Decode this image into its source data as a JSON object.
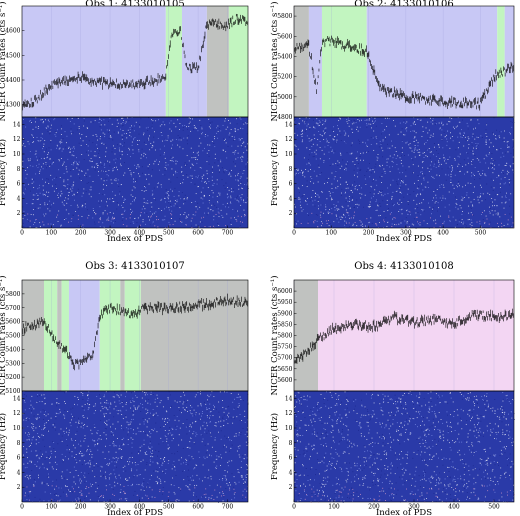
{
  "chart_data": [
    {
      "type": "line",
      "title": "Obs 1: 4133010105",
      "ylabel": "NICER Count rates (cts s⁻¹)",
      "xlabel": "Index of PDS",
      "ylabel_bottom": "Frequency (Hz)",
      "xlim": [
        0,
        770
      ],
      "xticks": [
        "0",
        "100",
        "200",
        "300",
        "400",
        "500",
        "600",
        "700"
      ],
      "ylim": [
        4250,
        4700
      ],
      "yticks": [
        "4300",
        "4400",
        "4500",
        "4600"
      ],
      "freq_lim": [
        0,
        15
      ],
      "freq_ticks": [
        "2",
        "4",
        "6",
        "8",
        "10",
        "12",
        "14"
      ],
      "bands": [
        {
          "from": 0,
          "to": 490,
          "class": "blue"
        },
        {
          "from": 490,
          "to": 545,
          "class": "green"
        },
        {
          "from": 545,
          "to": 630,
          "class": "blue"
        },
        {
          "from": 630,
          "to": 705,
          "class": "grey"
        },
        {
          "from": 705,
          "to": 770,
          "class": "green"
        }
      ],
      "series": [
        {
          "x": [
            0,
            50,
            100,
            150,
            200,
            250,
            300,
            350,
            400,
            450,
            490,
            510,
            540,
            560,
            600,
            630,
            660,
            700,
            730,
            770
          ],
          "y": [
            4300,
            4320,
            4380,
            4400,
            4410,
            4395,
            4385,
            4380,
            4385,
            4395,
            4420,
            4590,
            4600,
            4450,
            4450,
            4630,
            4630,
            4620,
            4650,
            4640
          ]
        }
      ]
    },
    {
      "type": "line",
      "title": "Obs 2: 4133010106",
      "ylabel": "NICER Count rates (cts s⁻¹)",
      "xlabel": "Index of PDS",
      "ylabel_bottom": "Frequency (Hz)",
      "xlim": [
        0,
        590
      ],
      "xticks": [
        "0",
        "100",
        "200",
        "300",
        "400",
        "500"
      ],
      "ylim": [
        4800,
        5900
      ],
      "yticks": [
        "4800",
        "5000",
        "5200",
        "5400",
        "5600",
        "5800"
      ],
      "freq_lim": [
        0,
        15
      ],
      "freq_ticks": [
        "2",
        "4",
        "6",
        "8",
        "10",
        "12",
        "14"
      ],
      "bands": [
        {
          "from": 0,
          "to": 40,
          "class": "grey"
        },
        {
          "from": 40,
          "to": 75,
          "class": "blue"
        },
        {
          "from": 75,
          "to": 195,
          "class": "green"
        },
        {
          "from": 195,
          "to": 545,
          "class": "blue"
        },
        {
          "from": 545,
          "to": 565,
          "class": "green"
        },
        {
          "from": 565,
          "to": 590,
          "class": "blue"
        }
      ],
      "series": [
        {
          "x": [
            0,
            40,
            60,
            75,
            100,
            150,
            195,
            230,
            300,
            400,
            500,
            540,
            560,
            590
          ],
          "y": [
            5500,
            5500,
            5080,
            5550,
            5550,
            5500,
            5450,
            5080,
            5000,
            4950,
            4930,
            5220,
            5250,
            5300
          ]
        }
      ]
    },
    {
      "type": "line",
      "title": "Obs 3: 4133010107",
      "ylabel": "NICER Count rates (cts s⁻¹)",
      "xlabel": "Index of PDS",
      "ylabel_bottom": "Frequency (Hz)",
      "xlim": [
        0,
        770
      ],
      "xticks": [
        "0",
        "100",
        "200",
        "300",
        "400",
        "500",
        "600",
        "700"
      ],
      "ylim": [
        5100,
        5900
      ],
      "yticks": [
        "5100",
        "5200",
        "5300",
        "5400",
        "5500",
        "5600",
        "5700",
        "5800"
      ],
      "freq_lim": [
        0,
        15
      ],
      "freq_ticks": [
        "2",
        "4",
        "6",
        "8",
        "10",
        "12",
        "14"
      ],
      "bands": [
        {
          "from": 0,
          "to": 75,
          "class": "grey"
        },
        {
          "from": 75,
          "to": 120,
          "class": "green"
        },
        {
          "from": 120,
          "to": 135,
          "class": "grey"
        },
        {
          "from": 135,
          "to": 160,
          "class": "green"
        },
        {
          "from": 160,
          "to": 265,
          "class": "blue"
        },
        {
          "from": 265,
          "to": 335,
          "class": "green"
        },
        {
          "from": 335,
          "to": 350,
          "class": "grey"
        },
        {
          "from": 350,
          "to": 405,
          "class": "green"
        },
        {
          "from": 405,
          "to": 770,
          "class": "grey"
        }
      ],
      "series": [
        {
          "x": [
            0,
            40,
            75,
            120,
            150,
            175,
            200,
            240,
            265,
            300,
            335,
            380,
            420,
            500,
            600,
            700,
            770
          ],
          "y": [
            5550,
            5580,
            5600,
            5450,
            5400,
            5280,
            5300,
            5350,
            5650,
            5700,
            5680,
            5650,
            5700,
            5700,
            5720,
            5750,
            5730
          ]
        }
      ]
    },
    {
      "type": "line",
      "title": "Obs 4: 4133010108",
      "ylabel": "NICER Count rates (cts s⁻¹)",
      "xlabel": "Index of PDS",
      "ylabel_bottom": "Frequency (Hz)",
      "xlim": [
        0,
        550
      ],
      "xticks": [
        "0",
        "100",
        "200",
        "300",
        "400",
        "500"
      ],
      "ylim": [
        5550,
        6050
      ],
      "yticks": [
        "5600",
        "5650",
        "5700",
        "5750",
        "5800",
        "5850",
        "5900",
        "5950",
        "6000"
      ],
      "freq_lim": [
        0,
        15
      ],
      "freq_ticks": [
        "2",
        "4",
        "6",
        "8",
        "10",
        "12",
        "14"
      ],
      "bands": [
        {
          "from": 0,
          "to": 60,
          "class": "grey"
        },
        {
          "from": 60,
          "to": 550,
          "class": "pink"
        }
      ],
      "series": [
        {
          "x": [
            0,
            30,
            60,
            100,
            150,
            200,
            250,
            300,
            350,
            400,
            450,
            500,
            550
          ],
          "y": [
            5680,
            5720,
            5780,
            5830,
            5850,
            5840,
            5880,
            5860,
            5870,
            5850,
            5900,
            5880,
            5890
          ]
        }
      ]
    }
  ],
  "colors": {
    "blue": "#c8c8f5",
    "green": "#c2f5c0",
    "grey": "#c0c2c0",
    "pink": "#f3d6f3",
    "spectrogram": "#2a3aa8",
    "data": "#000000"
  }
}
